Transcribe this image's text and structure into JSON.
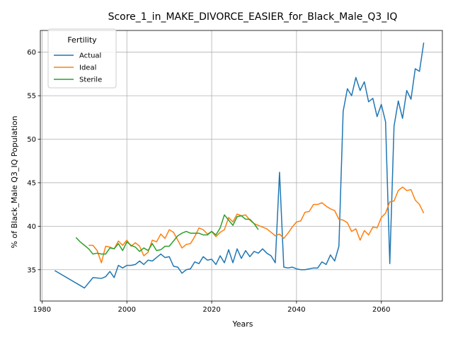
{
  "chart_data": {
    "type": "line",
    "title": "Score_1_in_MAKE_DIVORCE_EASIER_for_Black_Male_Q3_IQ",
    "xlabel": "Years",
    "ylabel": "% of Black_Male Q3_IQ Population",
    "xlim": [
      1979.6,
      2074.4
    ],
    "ylim": [
      31.4,
      62.5
    ],
    "xticks": [
      1980,
      2000,
      2020,
      2040,
      2060
    ],
    "yticks": [
      35,
      40,
      45,
      50,
      55,
      60
    ],
    "grid": true,
    "legend": {
      "title": "Fertility",
      "placement": "top-left"
    },
    "series": [
      {
        "name": "Actual",
        "color": "#1f77b4",
        "x": [
          1983,
          1990,
          1992,
          1994,
          1995,
          1996,
          1997,
          1998,
          1999,
          2000,
          2001,
          2002,
          2003,
          2004,
          2005,
          2006,
          2007,
          2008,
          2009,
          2010,
          2011,
          2012,
          2013,
          2014,
          2015,
          2016,
          2017,
          2018,
          2019,
          2020,
          2021,
          2022,
          2023,
          2024,
          2025,
          2026,
          2027,
          2028,
          2029,
          2030,
          2031,
          2032,
          2033,
          2034,
          2035,
          2036,
          2037,
          2038,
          2039,
          2040,
          2041,
          2042,
          2043,
          2044,
          2045,
          2046,
          2047,
          2048,
          2049,
          2050,
          2051,
          2052,
          2053,
          2054,
          2055,
          2056,
          2057,
          2058,
          2059,
          2060,
          2061,
          2062,
          2063,
          2064,
          2065,
          2066,
          2067,
          2068,
          2069,
          2070
        ],
        "y": [
          34.9,
          32.9,
          34.1,
          34.0,
          34.2,
          34.8,
          34.1,
          35.5,
          35.2,
          35.5,
          35.5,
          35.6,
          36.0,
          35.6,
          36.1,
          36.0,
          36.4,
          36.8,
          36.4,
          36.5,
          35.4,
          35.3,
          34.6,
          35.0,
          35.1,
          35.9,
          35.7,
          36.5,
          36.1,
          36.2,
          35.6,
          36.6,
          35.8,
          37.3,
          35.8,
          37.4,
          36.3,
          37.2,
          36.5,
          37.1,
          36.9,
          37.4,
          36.9,
          36.6,
          35.8,
          46.2,
          35.3,
          35.2,
          35.3,
          35.1,
          35.0,
          35.0,
          35.1,
          35.2,
          35.2,
          35.9,
          35.6,
          36.7,
          36.0,
          37.7,
          53.2,
          55.8,
          55.0,
          57.1,
          55.6,
          56.6,
          54.3,
          54.7,
          52.6,
          54.0,
          52.0,
          35.7,
          51.5,
          54.4,
          52.4,
          55.6,
          54.6,
          58.1,
          57.8,
          61.1
        ]
      },
      {
        "name": "Ideal",
        "color": "#ff7f0e",
        "x": [
          1991,
          1992,
          1993,
          1994,
          1995,
          1996,
          1997,
          1998,
          1999,
          2000,
          2001,
          2002,
          2003,
          2004,
          2005,
          2006,
          2007,
          2008,
          2009,
          2010,
          2011,
          2012,
          2013,
          2014,
          2015,
          2016,
          2017,
          2018,
          2019,
          2020,
          2021,
          2022,
          2023,
          2024,
          2025,
          2026,
          2027,
          2028,
          2029,
          2030,
          2031,
          2032,
          2033,
          2034,
          2035,
          2036,
          2037,
          2038,
          2039,
          2040,
          2041,
          2042,
          2043,
          2044,
          2045,
          2046,
          2047,
          2048,
          2049,
          2050,
          2051,
          2052,
          2053,
          2054,
          2055,
          2056,
          2057,
          2058,
          2059,
          2060,
          2061,
          2062,
          2063,
          2064,
          2065,
          2066,
          2067,
          2068,
          2069,
          2070
        ],
        "y": [
          37.8,
          37.8,
          37.2,
          35.8,
          37.7,
          37.6,
          37.4,
          38.3,
          37.8,
          38.4,
          37.7,
          38.1,
          37.7,
          36.6,
          37.0,
          38.4,
          38.2,
          39.1,
          38.6,
          39.6,
          39.3,
          38.4,
          37.5,
          37.9,
          38.0,
          38.8,
          39.8,
          39.6,
          39.1,
          39.4,
          38.8,
          39.3,
          39.6,
          41.0,
          40.5,
          41.4,
          41.2,
          41.3,
          40.7,
          40.3,
          40.1,
          39.9,
          39.7,
          39.3,
          38.9,
          39.1,
          38.6,
          39.2,
          39.9,
          40.5,
          40.6,
          41.6,
          41.7,
          42.5,
          42.5,
          42.7,
          42.3,
          42.0,
          41.8,
          40.8,
          40.7,
          40.4,
          39.4,
          39.7,
          38.4,
          39.5,
          39.0,
          39.9,
          39.8,
          41.0,
          41.5,
          42.8,
          42.9,
          44.1,
          44.5,
          44.1,
          44.2,
          43.0,
          42.5,
          41.5
        ]
      },
      {
        "name": "Sterile",
        "color": "#2ca02c",
        "x": [
          1988,
          1989,
          1990,
          1991,
          1992,
          1993,
          1994,
          1995,
          1996,
          1997,
          1998,
          1999,
          2000,
          2001,
          2002,
          2003,
          2004,
          2005,
          2006,
          2007,
          2008,
          2009,
          2010,
          2011,
          2012,
          2013,
          2014,
          2015,
          2016,
          2017,
          2018,
          2019,
          2020,
          2021,
          2022,
          2023,
          2024,
          2025,
          2026,
          2027,
          2028,
          2029,
          2030,
          2031
        ],
        "y": [
          38.7,
          38.2,
          37.8,
          37.4,
          36.8,
          36.9,
          36.8,
          36.8,
          37.5,
          37.4,
          38.0,
          37.2,
          38.2,
          37.8,
          37.6,
          37.1,
          37.5,
          37.2,
          38.0,
          37.2,
          37.3,
          37.7,
          37.7,
          38.3,
          38.9,
          39.2,
          39.4,
          39.2,
          39.2,
          39.2,
          39.0,
          39.0,
          39.4,
          39.0,
          39.8,
          41.3,
          40.7,
          40.1,
          41.1,
          41.2,
          40.8,
          40.8,
          40.3,
          39.6
        ]
      }
    ]
  }
}
